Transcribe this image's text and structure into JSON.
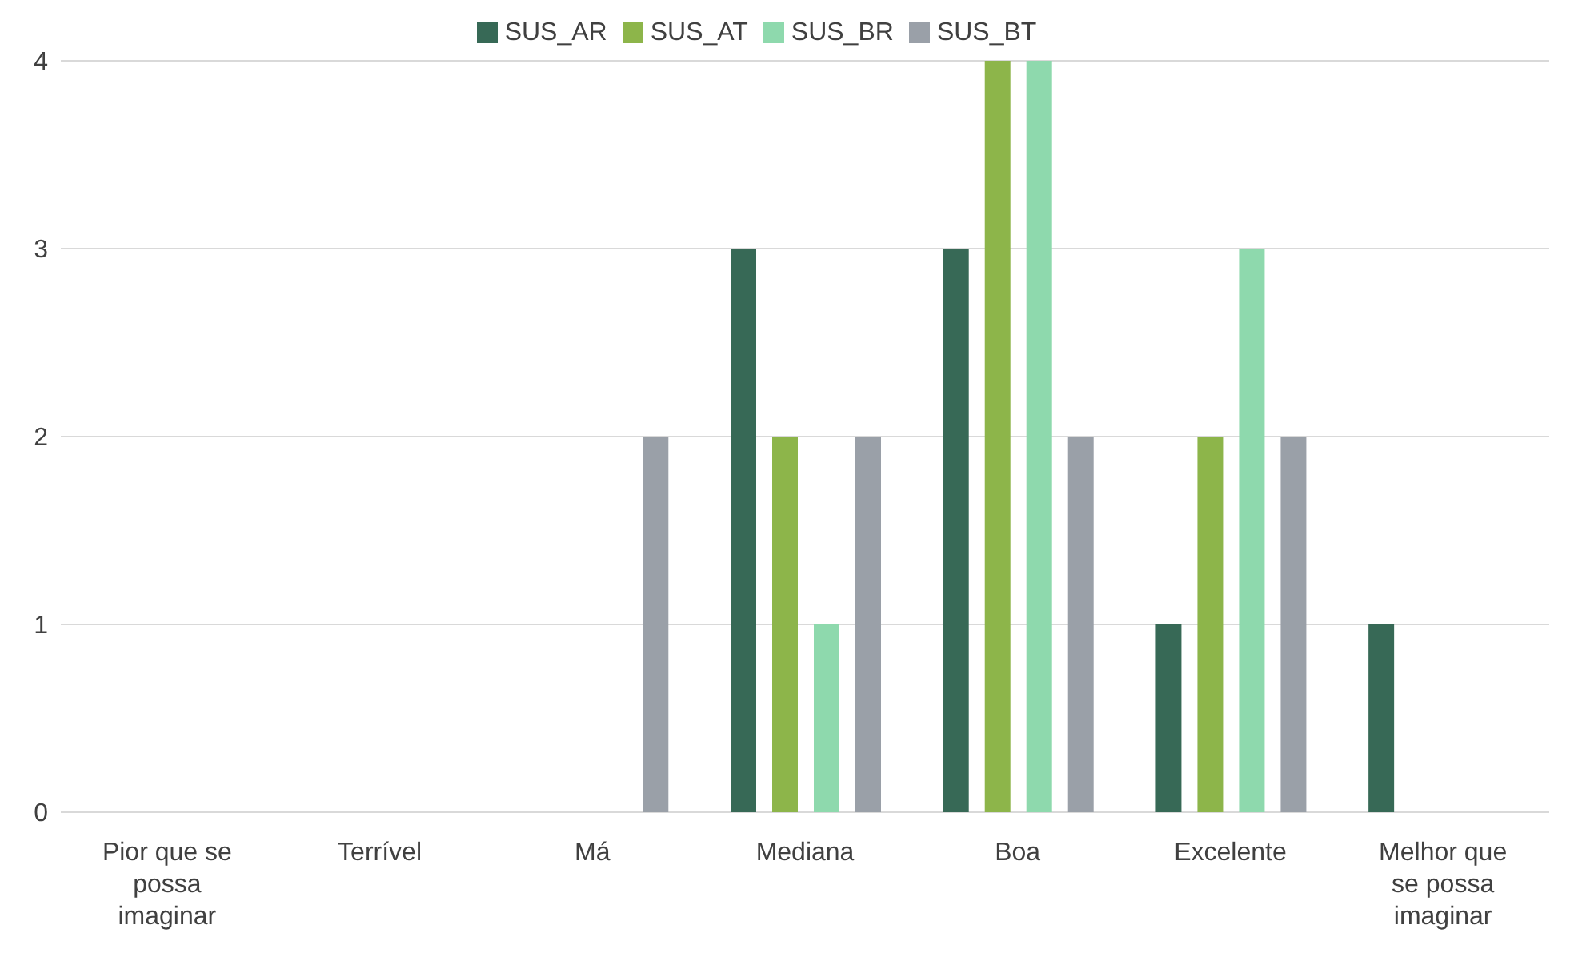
{
  "chart_data": {
    "type": "bar",
    "categories": [
      "Pior que se possa imaginar",
      "Terrível",
      "Má",
      "Mediana",
      "Boa",
      "Excelente",
      "Melhor que se possa imaginar"
    ],
    "series": [
      {
        "name": "SUS_AR",
        "color": "#376956",
        "values": [
          0,
          0,
          0,
          3,
          3,
          1,
          1
        ]
      },
      {
        "name": "SUS_AT",
        "color": "#8db54a",
        "values": [
          0,
          0,
          0,
          2,
          4,
          2,
          0
        ]
      },
      {
        "name": "SUS_BR",
        "color": "#8ed9ad",
        "values": [
          0,
          0,
          0,
          1,
          4,
          3,
          0
        ]
      },
      {
        "name": "SUS_BT",
        "color": "#9aa0a8",
        "values": [
          0,
          0,
          2,
          2,
          2,
          2,
          0
        ]
      }
    ],
    "ylim": [
      0,
      4
    ],
    "yticks": [
      0,
      1,
      2,
      3,
      4
    ],
    "grid": "y",
    "legend": "top"
  }
}
